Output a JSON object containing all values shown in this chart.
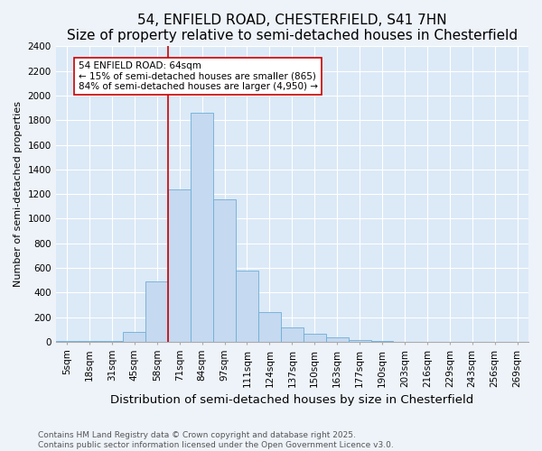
{
  "title1": "54, ENFIELD ROAD, CHESTERFIELD, S41 7HN",
  "title2": "Size of property relative to semi-detached houses in Chesterfield",
  "xlabel": "Distribution of semi-detached houses by size in Chesterfield",
  "ylabel": "Number of semi-detached properties",
  "categories": [
    "5sqm",
    "18sqm",
    "31sqm",
    "45sqm",
    "58sqm",
    "71sqm",
    "84sqm",
    "97sqm",
    "111sqm",
    "124sqm",
    "137sqm",
    "150sqm",
    "163sqm",
    "177sqm",
    "190sqm",
    "203sqm",
    "216sqm",
    "229sqm",
    "243sqm",
    "256sqm",
    "269sqm"
  ],
  "values": [
    3,
    3,
    8,
    80,
    490,
    1240,
    1860,
    1160,
    580,
    240,
    120,
    65,
    35,
    15,
    5,
    1,
    0,
    0,
    0,
    0,
    0
  ],
  "bar_color": "#c5d9f0",
  "bar_edge_color": "#6baed6",
  "bar_width": 1.0,
  "ylim": [
    0,
    2400
  ],
  "yticks": [
    0,
    200,
    400,
    600,
    800,
    1000,
    1200,
    1400,
    1600,
    1800,
    2000,
    2200,
    2400
  ],
  "property_name": "54 ENFIELD ROAD: 64sqm",
  "pct_smaller": 15,
  "pct_larger": 84,
  "n_smaller": 865,
  "n_larger": 4950,
  "vline_color": "#cc0000",
  "annotation_box_color": "#cc0000",
  "annotation_fontsize": 7.5,
  "title1_fontsize": 11,
  "title2_fontsize": 9.5,
  "xlabel_fontsize": 9.5,
  "ylabel_fontsize": 8,
  "tick_fontsize": 7.5,
  "footer1": "Contains HM Land Registry data © Crown copyright and database right 2025.",
  "footer2": "Contains public sector information licensed under the Open Government Licence v3.0.",
  "footer_fontsize": 6.5,
  "background_color": "#eef3fa",
  "plot_background_color": "#dce9f7"
}
